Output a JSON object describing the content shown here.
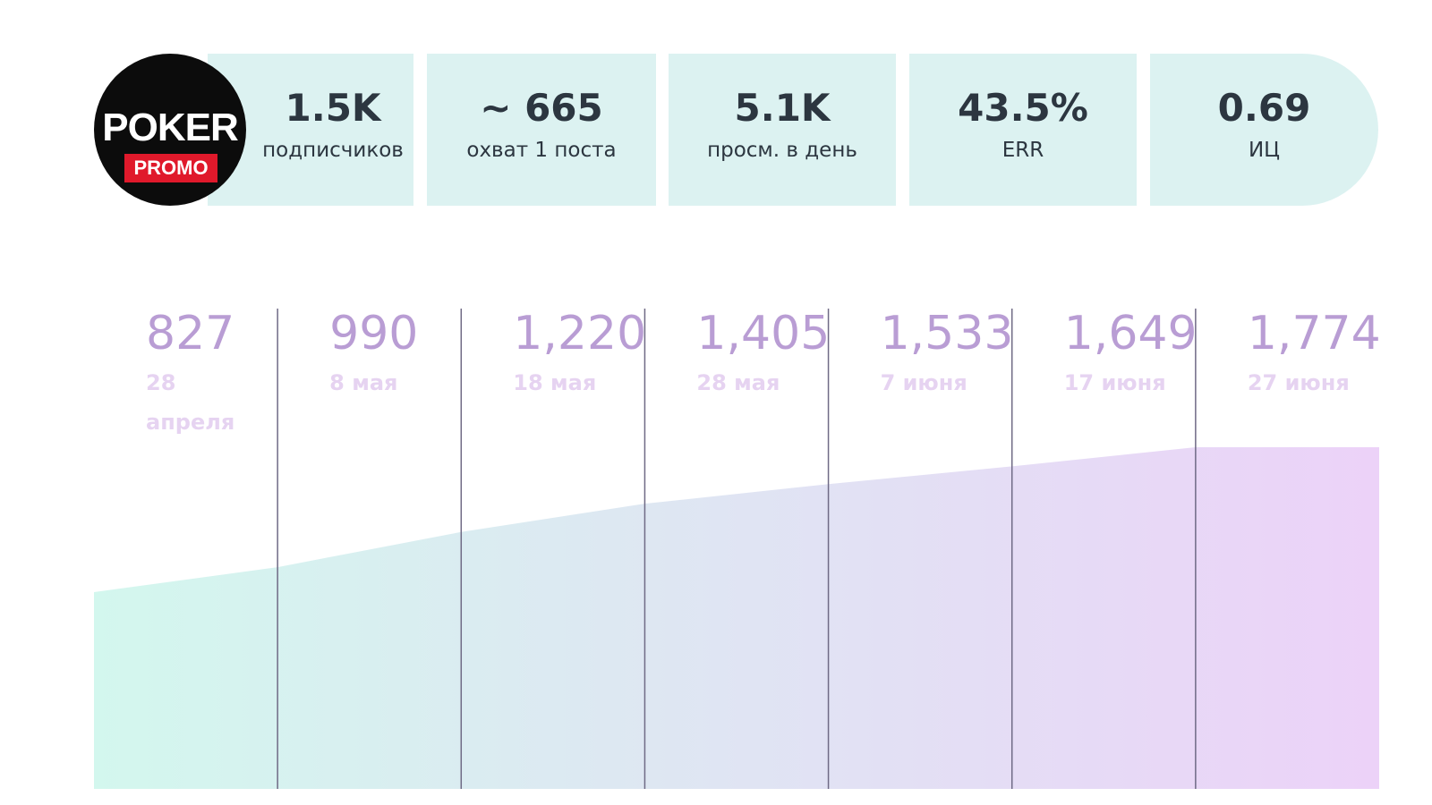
{
  "logo": {
    "top": "POKER",
    "bottom": "PROMO"
  },
  "stats": [
    {
      "value": "1.5K",
      "label": "подписчиков"
    },
    {
      "value": "~ 665",
      "label": "охват 1 поста"
    },
    {
      "value": "5.1K",
      "label": "просм. в день"
    },
    {
      "value": "43.5%",
      "label": "ERR"
    },
    {
      "value": "0.69",
      "label": "ИЦ"
    }
  ],
  "chart_data": {
    "type": "area",
    "categories": [
      "28 апреля",
      "8 мая",
      "18 мая",
      "28 мая",
      "7 июня",
      "17 июня",
      "27 июня"
    ],
    "values": [
      827,
      990,
      1220,
      1405,
      1533,
      1649,
      1774
    ],
    "value_labels": [
      "827",
      "990",
      "1,220",
      "1,405",
      "1,533",
      "1,649",
      "1,774"
    ],
    "colors": [
      "#d3f7ee",
      "#ecd2f8"
    ],
    "ylim": [
      -460,
      2710
    ]
  }
}
